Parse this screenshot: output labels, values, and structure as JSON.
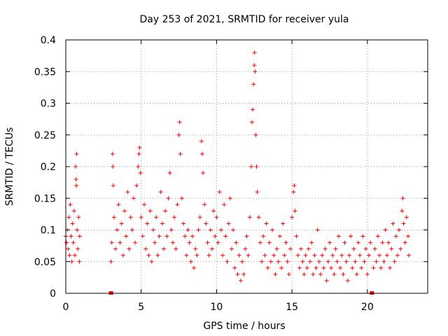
{
  "chart_data": {
    "type": "scatter",
    "title": "Day 253 of 2021, SRMTID for receiver yula",
    "xlabel": "GPS time / hours",
    "ylabel": "SRMTID / TECUs",
    "xlim": [
      0,
      24
    ],
    "ylim": [
      0,
      0.4
    ],
    "x_ticks": [
      0,
      5,
      10,
      15,
      20
    ],
    "x_tick_labels": [
      "0",
      "5",
      "10",
      "15",
      "20"
    ],
    "y_ticks": [
      0,
      0.05,
      0.1,
      0.15,
      0.2,
      0.25,
      0.3,
      0.35,
      0.4
    ],
    "y_tick_labels": [
      "0",
      "0.05",
      "0.1",
      "0.15",
      "0.2",
      "0.25",
      "0.3",
      "0.35",
      "0.4"
    ],
    "grid": true,
    "marker": "+",
    "color": "#ff0000",
    "data_gaps_marked_at_hours": [
      3.0,
      20.3
    ],
    "series": [
      {
        "name": "SRMTID",
        "points": [
          [
            0.0,
            0.09
          ],
          [
            0.05,
            0.08
          ],
          [
            0.1,
            0.1
          ],
          [
            0.15,
            0.07
          ],
          [
            0.2,
            0.12
          ],
          [
            0.25,
            0.06
          ],
          [
            0.3,
            0.14
          ],
          [
            0.35,
            0.09
          ],
          [
            0.4,
            0.05
          ],
          [
            0.45,
            0.11
          ],
          [
            0.5,
            0.08
          ],
          [
            0.55,
            0.13
          ],
          [
            0.6,
            0.06
          ],
          [
            0.65,
            0.2
          ],
          [
            0.68,
            0.18
          ],
          [
            0.7,
            0.17
          ],
          [
            0.72,
            0.22
          ],
          [
            0.75,
            0.1
          ],
          [
            0.8,
            0.07
          ],
          [
            0.85,
            0.12
          ],
          [
            0.9,
            0.05
          ],
          [
            0.92,
            0.09
          ],
          [
            3.0,
            0.05
          ],
          [
            3.05,
            0.08
          ],
          [
            3.1,
            0.22
          ],
          [
            3.12,
            0.2
          ],
          [
            3.15,
            0.17
          ],
          [
            3.2,
            0.12
          ],
          [
            3.3,
            0.07
          ],
          [
            3.4,
            0.1
          ],
          [
            3.5,
            0.14
          ],
          [
            3.6,
            0.08
          ],
          [
            3.7,
            0.11
          ],
          [
            3.8,
            0.06
          ],
          [
            3.9,
            0.13
          ],
          [
            4.0,
            0.09
          ],
          [
            4.1,
            0.16
          ],
          [
            4.2,
            0.07
          ],
          [
            4.3,
            0.12
          ],
          [
            4.4,
            0.1
          ],
          [
            4.5,
            0.15
          ],
          [
            4.6,
            0.08
          ],
          [
            4.7,
            0.17
          ],
          [
            4.8,
            0.2
          ],
          [
            4.85,
            0.22
          ],
          [
            4.9,
            0.23
          ],
          [
            4.95,
            0.19
          ],
          [
            5.0,
            0.12
          ],
          [
            5.1,
            0.09
          ],
          [
            5.2,
            0.14
          ],
          [
            5.3,
            0.07
          ],
          [
            5.4,
            0.11
          ],
          [
            5.5,
            0.06
          ],
          [
            5.6,
            0.13
          ],
          [
            5.7,
            0.05
          ],
          [
            5.8,
            0.1
          ],
          [
            5.9,
            0.08
          ],
          [
            6.0,
            0.12
          ],
          [
            6.1,
            0.06
          ],
          [
            6.2,
            0.09
          ],
          [
            6.3,
            0.16
          ],
          [
            6.4,
            0.11
          ],
          [
            6.5,
            0.07
          ],
          [
            6.6,
            0.13
          ],
          [
            6.7,
            0.09
          ],
          [
            6.8,
            0.15
          ],
          [
            6.9,
            0.19
          ],
          [
            7.0,
            0.1
          ],
          [
            7.1,
            0.08
          ],
          [
            7.2,
            0.12
          ],
          [
            7.3,
            0.07
          ],
          [
            7.4,
            0.14
          ],
          [
            7.5,
            0.25
          ],
          [
            7.55,
            0.27
          ],
          [
            7.6,
            0.22
          ],
          [
            7.7,
            0.15
          ],
          [
            7.8,
            0.11
          ],
          [
            7.9,
            0.09
          ],
          [
            8.0,
            0.06
          ],
          [
            8.1,
            0.1
          ],
          [
            8.2,
            0.08
          ],
          [
            8.3,
            0.05
          ],
          [
            8.4,
            0.09
          ],
          [
            8.5,
            0.04
          ],
          [
            8.6,
            0.07
          ],
          [
            8.7,
            0.06
          ],
          [
            8.8,
            0.1
          ],
          [
            8.9,
            0.12
          ],
          [
            9.0,
            0.24
          ],
          [
            9.05,
            0.22
          ],
          [
            9.1,
            0.19
          ],
          [
            9.2,
            0.14
          ],
          [
            9.3,
            0.11
          ],
          [
            9.4,
            0.08
          ],
          [
            9.5,
            0.06
          ],
          [
            9.6,
            0.1
          ],
          [
            9.7,
            0.07
          ],
          [
            9.8,
            0.13
          ],
          [
            9.9,
            0.09
          ],
          [
            10.0,
            0.12
          ],
          [
            10.1,
            0.08
          ],
          [
            10.2,
            0.16
          ],
          [
            10.3,
            0.1
          ],
          [
            10.4,
            0.06
          ],
          [
            10.5,
            0.14
          ],
          [
            10.6,
            0.09
          ],
          [
            10.7,
            0.05
          ],
          [
            10.8,
            0.11
          ],
          [
            10.9,
            0.15
          ],
          [
            11.0,
            0.07
          ],
          [
            11.1,
            0.1
          ],
          [
            11.2,
            0.04
          ],
          [
            11.3,
            0.08
          ],
          [
            11.4,
            0.03
          ],
          [
            11.5,
            0.06
          ],
          [
            11.6,
            0.02
          ],
          [
            11.7,
            0.05
          ],
          [
            11.8,
            0.03
          ],
          [
            11.9,
            0.07
          ],
          [
            12.0,
            0.09
          ],
          [
            12.1,
            0.06
          ],
          [
            12.2,
            0.12
          ],
          [
            12.3,
            0.2
          ],
          [
            12.35,
            0.27
          ],
          [
            12.4,
            0.29
          ],
          [
            12.45,
            0.33
          ],
          [
            12.5,
            0.36
          ],
          [
            12.52,
            0.38
          ],
          [
            12.55,
            0.35
          ],
          [
            12.6,
            0.25
          ],
          [
            12.65,
            0.2
          ],
          [
            12.7,
            0.16
          ],
          [
            12.8,
            0.12
          ],
          [
            12.9,
            0.08
          ],
          [
            13.0,
            0.05
          ],
          [
            13.1,
            0.09
          ],
          [
            13.2,
            0.06
          ],
          [
            13.3,
            0.11
          ],
          [
            13.4,
            0.04
          ],
          [
            13.5,
            0.08
          ],
          [
            13.6,
            0.05
          ],
          [
            13.7,
            0.1
          ],
          [
            13.8,
            0.06
          ],
          [
            13.9,
            0.03
          ],
          [
            14.0,
            0.07
          ],
          [
            14.1,
            0.05
          ],
          [
            14.2,
            0.09
          ],
          [
            14.3,
            0.04
          ],
          [
            14.4,
            0.11
          ],
          [
            14.5,
            0.06
          ],
          [
            14.6,
            0.08
          ],
          [
            14.7,
            0.05
          ],
          [
            14.8,
            0.03
          ],
          [
            14.9,
            0.07
          ],
          [
            15.0,
            0.12
          ],
          [
            15.1,
            0.16
          ],
          [
            15.15,
            0.17
          ],
          [
            15.2,
            0.13
          ],
          [
            15.3,
            0.09
          ],
          [
            15.4,
            0.06
          ],
          [
            15.5,
            0.04
          ],
          [
            15.6,
            0.07
          ],
          [
            15.7,
            0.05
          ],
          [
            15.8,
            0.03
          ],
          [
            15.9,
            0.06
          ],
          [
            16.0,
            0.04
          ],
          [
            16.1,
            0.07
          ],
          [
            16.2,
            0.05
          ],
          [
            16.3,
            0.08
          ],
          [
            16.4,
            0.03
          ],
          [
            16.5,
            0.06
          ],
          [
            16.6,
            0.04
          ],
          [
            16.7,
            0.1
          ],
          [
            16.8,
            0.05
          ],
          [
            16.9,
            0.03
          ],
          [
            17.0,
            0.06
          ],
          [
            17.1,
            0.04
          ],
          [
            17.2,
            0.07
          ],
          [
            17.3,
            0.02
          ],
          [
            17.4,
            0.05
          ],
          [
            17.5,
            0.08
          ],
          [
            17.6,
            0.04
          ],
          [
            17.7,
            0.06
          ],
          [
            17.8,
            0.03
          ],
          [
            17.9,
            0.07
          ],
          [
            18.0,
            0.05
          ],
          [
            18.1,
            0.09
          ],
          [
            18.2,
            0.04
          ],
          [
            18.3,
            0.06
          ],
          [
            18.4,
            0.03
          ],
          [
            18.5,
            0.08
          ],
          [
            18.6,
            0.05
          ],
          [
            18.7,
            0.02
          ],
          [
            18.8,
            0.06
          ],
          [
            18.9,
            0.09
          ],
          [
            19.0,
            0.04
          ],
          [
            19.1,
            0.07
          ],
          [
            19.2,
            0.05
          ],
          [
            19.3,
            0.03
          ],
          [
            19.4,
            0.08
          ],
          [
            19.5,
            0.06
          ],
          [
            19.6,
            0.04
          ],
          [
            19.7,
            0.09
          ],
          [
            19.8,
            0.05
          ],
          [
            19.9,
            0.07
          ],
          [
            20.0,
            0.03
          ],
          [
            20.1,
            0.06
          ],
          [
            20.2,
            0.08
          ],
          [
            20.4,
            0.04
          ],
          [
            20.5,
            0.07
          ],
          [
            20.6,
            0.05
          ],
          [
            20.7,
            0.09
          ],
          [
            20.8,
            0.06
          ],
          [
            20.9,
            0.04
          ],
          [
            21.0,
            0.08
          ],
          [
            21.1,
            0.05
          ],
          [
            21.2,
            0.1
          ],
          [
            21.3,
            0.06
          ],
          [
            21.4,
            0.08
          ],
          [
            21.5,
            0.04
          ],
          [
            21.6,
            0.07
          ],
          [
            21.7,
            0.11
          ],
          [
            21.8,
            0.05
          ],
          [
            21.9,
            0.09
          ],
          [
            22.0,
            0.06
          ],
          [
            22.1,
            0.1
          ],
          [
            22.2,
            0.07
          ],
          [
            22.3,
            0.13
          ],
          [
            22.35,
            0.15
          ],
          [
            22.4,
            0.11
          ],
          [
            22.5,
            0.08
          ],
          [
            22.6,
            0.12
          ],
          [
            22.7,
            0.09
          ],
          [
            22.75,
            0.06
          ]
        ]
      }
    ]
  }
}
